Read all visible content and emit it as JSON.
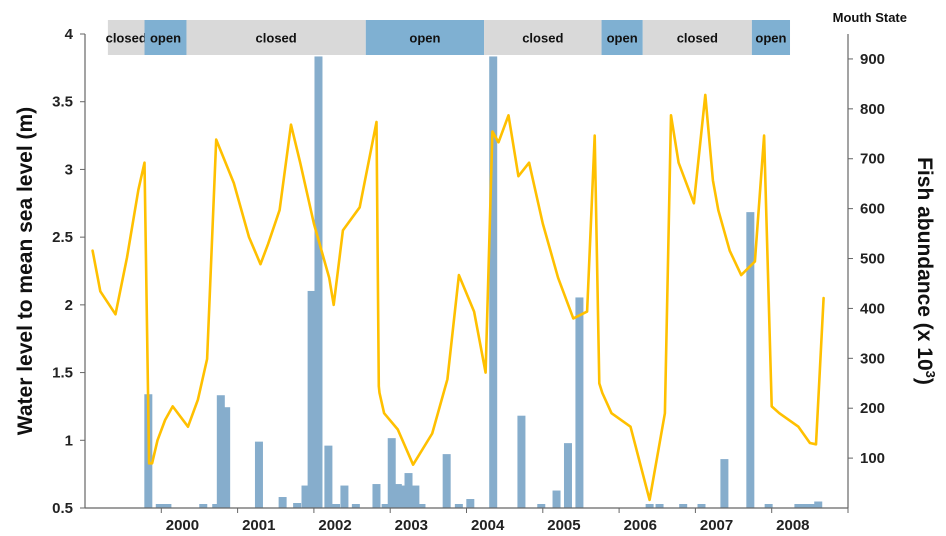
{
  "chart_data": {
    "type": "bar+line",
    "mouth_state_title": "Mouth State",
    "mouth_state_colors": {
      "closed": "#d9d9d9",
      "open": "#7fb0d2"
    },
    "mouth_states": [
      {
        "label": "closed",
        "state": "closed",
        "start": 1999.3,
        "end": 1999.78
      },
      {
        "label": "open",
        "state": "open",
        "start": 1999.78,
        "end": 2000.33
      },
      {
        "label": "closed",
        "state": "closed",
        "start": 2000.33,
        "end": 2002.68
      },
      {
        "label": "open",
        "state": "open",
        "start": 2002.68,
        "end": 2004.23
      },
      {
        "label": "closed",
        "state": "closed",
        "start": 2004.23,
        "end": 2005.77
      },
      {
        "label": "open",
        "state": "open",
        "start": 2005.77,
        "end": 2006.31
      },
      {
        "label": "closed",
        "state": "closed",
        "start": 2006.31,
        "end": 2007.74
      },
      {
        "label": "open",
        "state": "open",
        "start": 2007.74,
        "end": 2008.24
      }
    ],
    "x_ticks": [
      "2000",
      "2001",
      "2002",
      "2003",
      "2004",
      "2005",
      "2006",
      "2007",
      "2008"
    ],
    "xlim": [
      1999,
      2009
    ],
    "y_left": {
      "label": "Water level to mean sea level (m)",
      "ylim": [
        0.5,
        4
      ],
      "ticks": [
        "0.5",
        "1",
        "1.5",
        "2",
        "2.5",
        "3",
        "3.5",
        "4"
      ]
    },
    "y_right": {
      "label": "Fish abundance (x 10",
      "label_sup": "3",
      "label_close": ")",
      "ylim": [
        0,
        950
      ],
      "ticks": [
        "100",
        "200",
        "300",
        "400",
        "500",
        "600",
        "700",
        "800",
        "900"
      ]
    },
    "series": [
      {
        "type": "bar",
        "axis": "right",
        "color": "#86adcc",
        "x": [
          1999.83,
          1999.98,
          2000.08,
          2000.55,
          2000.72,
          2000.78,
          2000.85,
          2001.28,
          2001.59,
          2001.78,
          2001.89,
          2001.97,
          2002.06,
          2002.19,
          2002.29,
          2002.4,
          2002.55,
          2002.82,
          2002.94,
          2003.02,
          2003.1,
          2003.16,
          2003.24,
          2003.33,
          2003.41,
          2003.74,
          2003.9,
          2004.05,
          2004.35,
          2004.72,
          2004.98,
          2005.18,
          2005.33,
          2005.48,
          2006.4,
          2006.53,
          2006.84,
          2007.08,
          2007.38,
          2007.72,
          2007.96,
          2008.35,
          2008.45,
          2008.55,
          2008.61
        ],
        "values": [
          228,
          8,
          8,
          8,
          8,
          226,
          202,
          133,
          22,
          10,
          45,
          435,
          905,
          125,
          8,
          45,
          8,
          48,
          8,
          140,
          48,
          45,
          70,
          45,
          8,
          108,
          8,
          18,
          905,
          185,
          8,
          35,
          130,
          422,
          8,
          8,
          8,
          8,
          98,
          593,
          8,
          8,
          8,
          8,
          13
        ]
      },
      {
        "type": "line",
        "axis": "left",
        "color": "#ffc000",
        "x": [
          1999.1,
          1999.2,
          1999.4,
          1999.55,
          1999.7,
          1999.78,
          1999.84,
          1999.88,
          1999.95,
          2000.05,
          2000.15,
          2000.35,
          2000.48,
          2000.6,
          2000.72,
          2000.95,
          2001.15,
          2001.3,
          2001.4,
          2001.55,
          2001.7,
          2001.82,
          2002.0,
          2002.2,
          2002.26,
          2002.38,
          2002.6,
          2002.82,
          2002.85,
          2002.86,
          2002.92,
          2003.1,
          2003.3,
          2003.55,
          2003.75,
          2003.9,
          2004.1,
          2004.25,
          2004.34,
          2004.42,
          2004.55,
          2004.68,
          2004.82,
          2005.0,
          2005.2,
          2005.4,
          2005.58,
          2005.68,
          2005.74,
          2005.78,
          2005.9,
          2006.15,
          2006.4,
          2006.6,
          2006.68,
          2006.78,
          2006.98,
          2007.13,
          2007.23,
          2007.3,
          2007.45,
          2007.6,
          2007.78,
          2007.9,
          2008.0,
          2008.1,
          2008.35,
          2008.5,
          2008.58,
          2008.68
        ],
        "values": [
          2.4,
          2.1,
          1.93,
          2.35,
          2.85,
          3.05,
          0.83,
          0.83,
          1.0,
          1.15,
          1.25,
          1.1,
          1.3,
          1.6,
          3.22,
          2.9,
          2.5,
          2.3,
          2.45,
          2.7,
          3.33,
          3.05,
          2.6,
          2.2,
          2.0,
          2.55,
          2.72,
          3.35,
          1.4,
          1.35,
          1.2,
          1.08,
          0.82,
          1.05,
          1.45,
          2.22,
          1.95,
          1.5,
          3.28,
          3.2,
          3.4,
          2.95,
          3.05,
          2.6,
          2.2,
          1.9,
          1.95,
          3.25,
          1.42,
          1.35,
          1.2,
          1.1,
          0.56,
          1.2,
          3.4,
          3.05,
          2.75,
          3.55,
          2.92,
          2.7,
          2.4,
          2.22,
          2.32,
          3.25,
          1.25,
          1.2,
          1.1,
          0.98,
          0.97,
          2.05
        ]
      }
    ]
  }
}
